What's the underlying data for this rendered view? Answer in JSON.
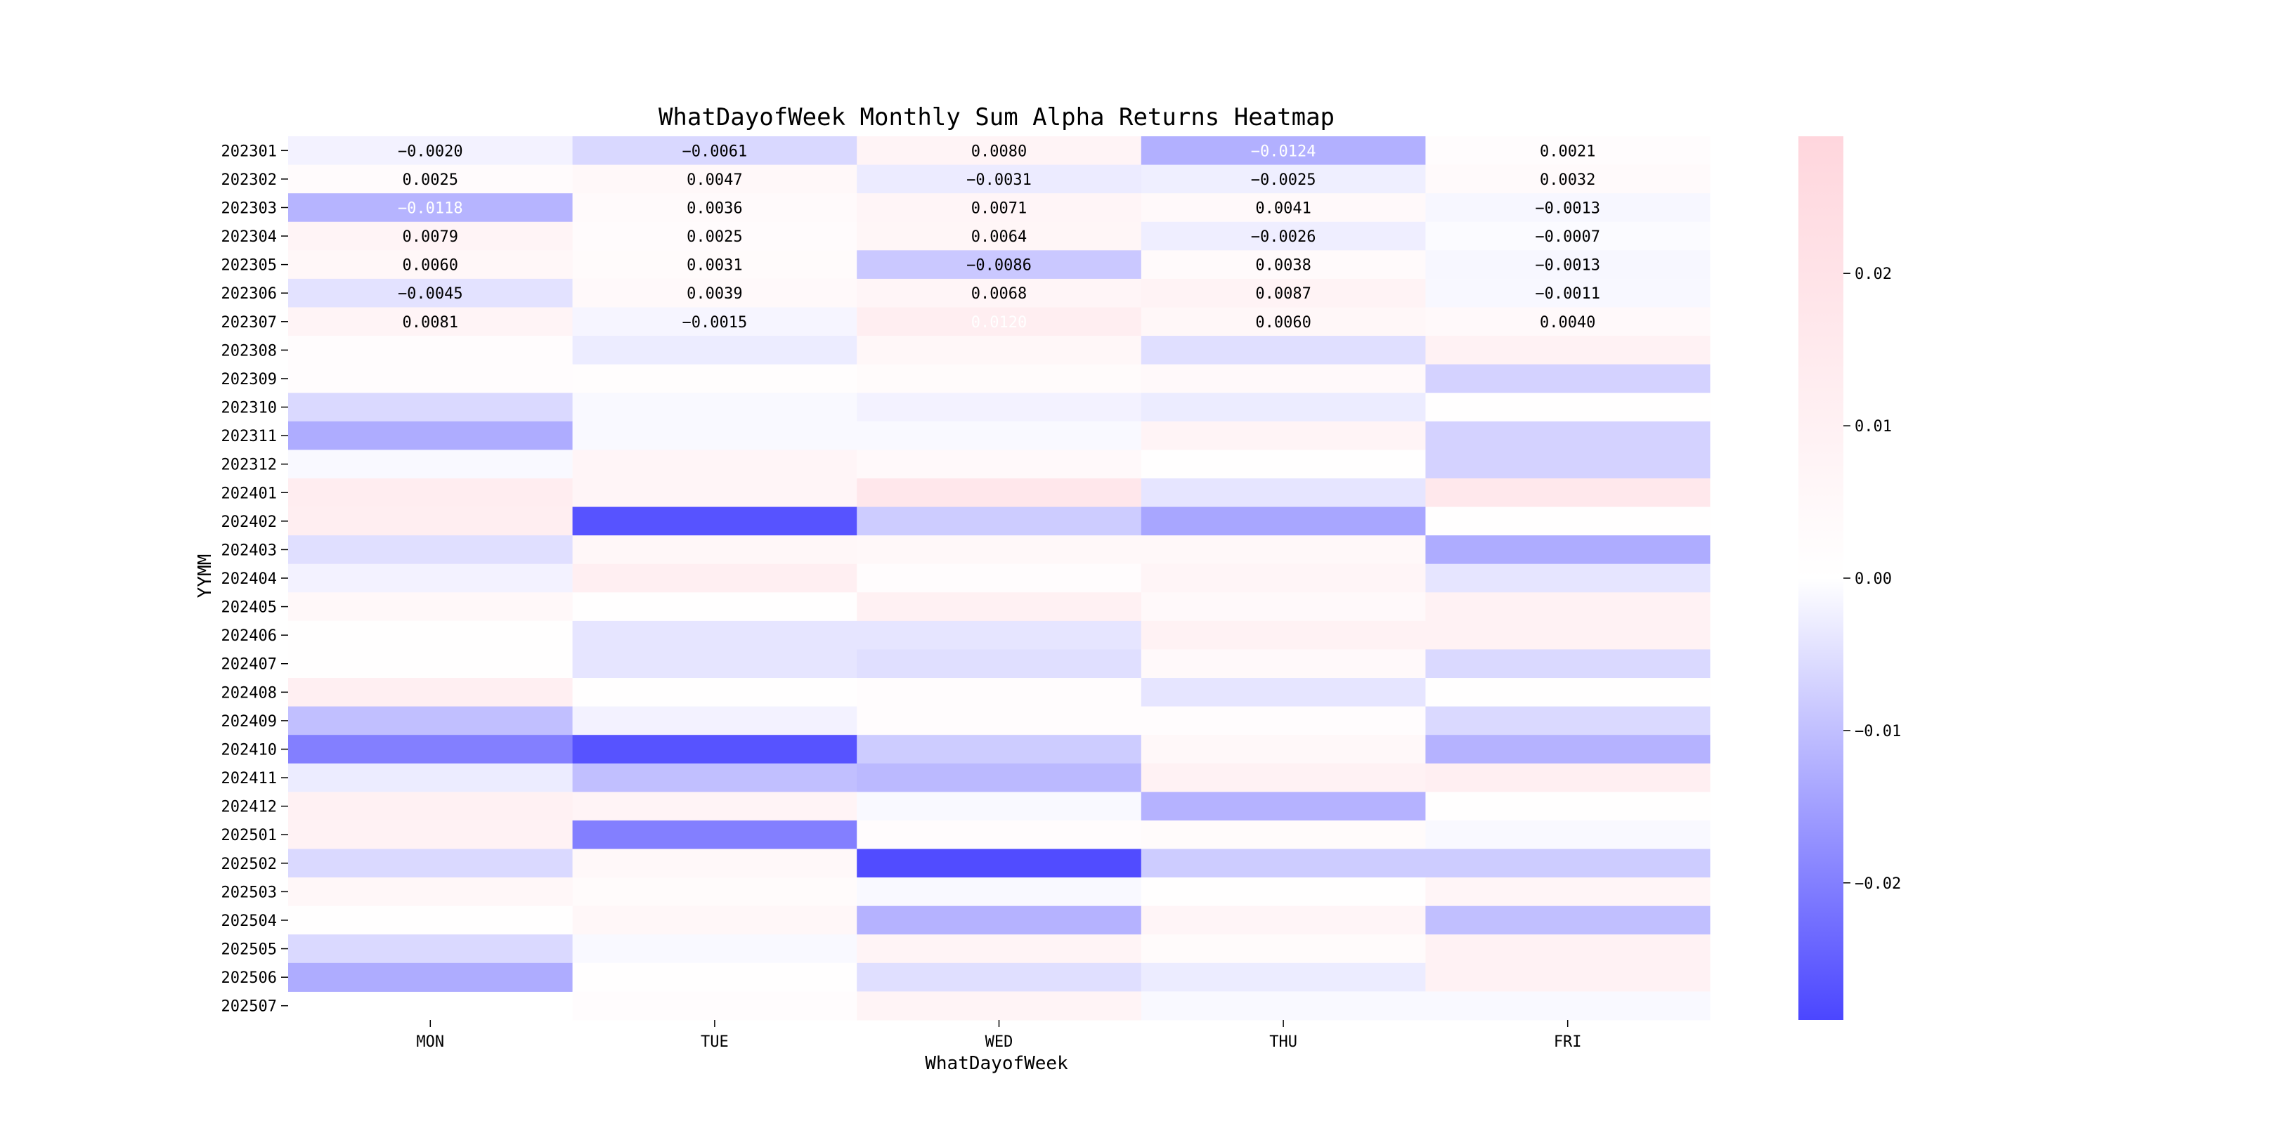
{
  "chart_data": {
    "type": "heatmap",
    "title": "WhatDayofWeek Monthly Sum Alpha Returns Heatmap",
    "xlabel": "WhatDayofWeek",
    "ylabel": "YYMM",
    "columns": [
      "MON",
      "TUE",
      "WED",
      "THU",
      "FRI"
    ],
    "rows": [
      "202301",
      "202302",
      "202303",
      "202304",
      "202305",
      "202306",
      "202307",
      "202308",
      "202309",
      "202310",
      "202311",
      "202312",
      "202401",
      "202402",
      "202403",
      "202404",
      "202405",
      "202406",
      "202407",
      "202408",
      "202409",
      "202410",
      "202411",
      "202412",
      "202501",
      "202502",
      "202503",
      "202504",
      "202505",
      "202506",
      "202507"
    ],
    "values": [
      [
        -0.002,
        -0.0061,
        0.008,
        -0.0124,
        0.0021
      ],
      [
        0.0025,
        0.0047,
        -0.0031,
        -0.0025,
        0.0032
      ],
      [
        -0.0118,
        0.0036,
        0.0071,
        0.0041,
        -0.0013
      ],
      [
        0.0079,
        0.0025,
        0.0064,
        -0.0026,
        -0.0007
      ],
      [
        0.006,
        0.0031,
        -0.0086,
        0.0038,
        -0.0013
      ],
      [
        -0.0045,
        0.0039,
        0.0068,
        0.0087,
        -0.0011
      ],
      [
        0.0081,
        -0.0015,
        0.012,
        0.006,
        0.004
      ],
      [
        0.002,
        -0.003,
        0.006,
        -0.005,
        0.009
      ],
      [
        0.002,
        0.0015,
        0.003,
        0.004,
        -0.007
      ],
      [
        -0.006,
        -0.001,
        -0.002,
        -0.003,
        0.001
      ],
      [
        -0.013,
        -0.001,
        -0.001,
        0.008,
        -0.007
      ],
      [
        -0.001,
        0.007,
        0.004,
        0.001,
        -0.007
      ],
      [
        0.013,
        0.007,
        0.017,
        -0.004,
        0.016
      ],
      [
        0.012,
        -0.027,
        -0.008,
        -0.014,
        0.001
      ],
      [
        -0.005,
        0.006,
        0.005,
        0.005,
        -0.013
      ],
      [
        -0.002,
        0.011,
        0.002,
        0.007,
        -0.004
      ],
      [
        0.005,
        0.001,
        0.01,
        0.004,
        0.009
      ],
      [
        0.001,
        -0.004,
        -0.004,
        0.009,
        0.009
      ],
      [
        0.001,
        -0.004,
        -0.005,
        0.004,
        -0.006
      ],
      [
        0.011,
        0.001,
        0.002,
        -0.004,
        0.001
      ],
      [
        -0.01,
        -0.002,
        0.002,
        0.002,
        -0.006
      ],
      [
        -0.02,
        -0.027,
        -0.008,
        0.005,
        -0.012
      ],
      [
        -0.003,
        -0.01,
        -0.011,
        0.009,
        0.011
      ],
      [
        0.01,
        0.008,
        -0.001,
        -0.012,
        0.001
      ],
      [
        0.009,
        -0.02,
        0.002,
        0.003,
        -0.001
      ],
      [
        -0.006,
        0.005,
        -0.028,
        -0.008,
        -0.008
      ],
      [
        0.006,
        0.003,
        -0.001,
        0.001,
        0.007
      ],
      [
        0.001,
        0.006,
        -0.012,
        0.007,
        -0.01
      ],
      [
        -0.006,
        -0.001,
        0.008,
        0.003,
        0.009
      ],
      [
        -0.013,
        0.001,
        -0.005,
        -0.003,
        0.009
      ],
      [
        null,
        0.002,
        0.008,
        -0.001,
        -0.001
      ]
    ],
    "annotated_rows": 7,
    "value_format": "4 decimals",
    "colormap": {
      "low": "#4b46ff",
      "mid": "#ffffff",
      "high": "#ffd6dd"
    },
    "vmin": -0.029,
    "vmax": 0.029,
    "colorbar_ticks": [
      0.02,
      0.01,
      0.0,
      -0.01,
      -0.02
    ],
    "colorbar_tick_labels": [
      "0.02",
      "0.01",
      "0.00",
      "−0.01",
      "−0.02"
    ]
  }
}
